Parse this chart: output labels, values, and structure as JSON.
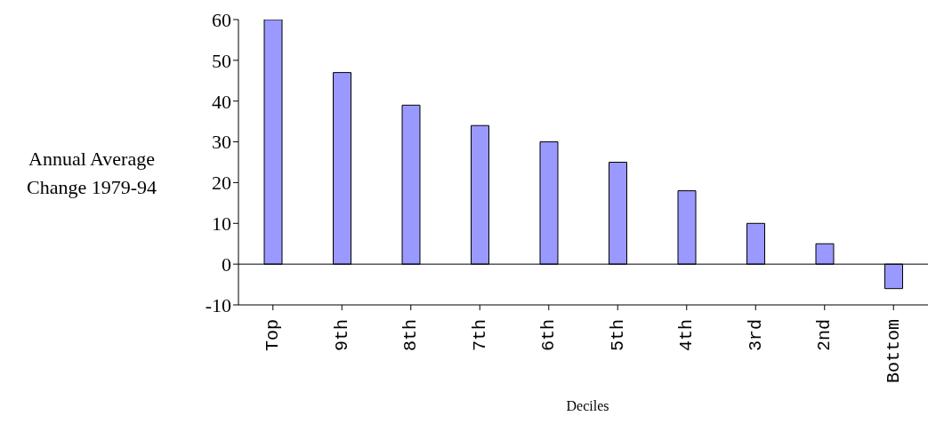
{
  "chart_data": {
    "type": "bar",
    "xlabel": "Deciles",
    "ylabel": "Annual Average Change 1979-94",
    "categories": [
      "Top",
      "9th",
      "8th",
      "7th",
      "6th",
      "5th",
      "4th",
      "3rd",
      "2nd",
      "Bottom"
    ],
    "values": [
      60,
      47,
      39,
      34,
      30,
      25,
      18,
      10,
      5,
      -6
    ],
    "color": "#9999ff",
    "ylim": [
      -10,
      60
    ],
    "yticks": [
      -10,
      0,
      10,
      20,
      30,
      40,
      50,
      60
    ],
    "ref_lines": [
      {
        "axis": "y",
        "value": 0
      }
    ]
  }
}
